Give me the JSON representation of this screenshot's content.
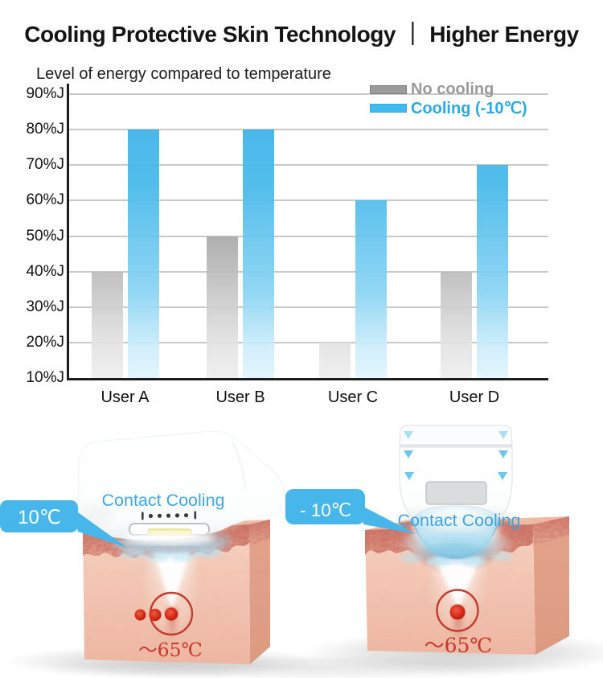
{
  "title": {
    "text": "Cooling Protective Skin Technology ｜ Higher Energy"
  },
  "chart_data": {
    "type": "bar",
    "title": "Level of energy compared to temperature",
    "categories": [
      "User A",
      "User B",
      "User C",
      "User D"
    ],
    "series": [
      {
        "name": "No cooling",
        "color": "#9b9b9b",
        "values": [
          40,
          50,
          20,
          40
        ]
      },
      {
        "name": "Cooling (-10℃)",
        "color": "#40bbef",
        "values": [
          80,
          80,
          60,
          70
        ]
      }
    ],
    "unit": "%J",
    "yticks": [
      90,
      80,
      70,
      60,
      50,
      40,
      30,
      20,
      10
    ],
    "ylim": [
      10,
      90
    ],
    "grid": true,
    "legend_position": "top-right",
    "legend_text_colors": [
      "#9a9a9a",
      "#2aa9e2"
    ]
  },
  "illustration": {
    "accent_blue": "#47b6ea",
    "accent_red": "#cc352b",
    "left": {
      "badge_label": "10℃",
      "cooling_label": "Contact Cooling",
      "temperature_label": "～65℃"
    },
    "right": {
      "badge_label": "- 10℃",
      "cooling_label": "Contact Cooling",
      "temperature_label": "～65℃"
    }
  }
}
